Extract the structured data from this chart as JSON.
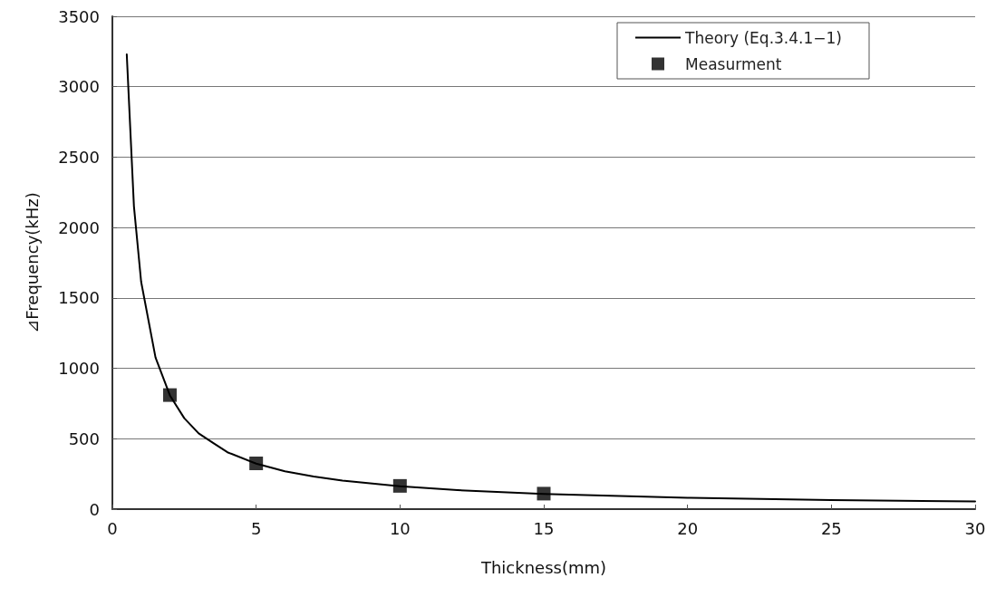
{
  "chart_data": {
    "type": "line",
    "xlabel": "Thickness(mm)",
    "ylabel": "⊿Frequency(kHz)",
    "xlim": [
      0,
      30
    ],
    "xticks": [
      0,
      5,
      10,
      15,
      20,
      25,
      30
    ],
    "ylim": [
      0,
      3500
    ],
    "yticks": [
      0,
      500,
      1000,
      1500,
      2000,
      2500,
      3000,
      3500
    ],
    "grid": "y",
    "legend": "top right",
    "series": [
      {
        "name": "Theory (Eq.3.4.1−1)",
        "type": "line",
        "marker": "none",
        "line_style": "solid",
        "color": "#000000",
        "x": [
          0.5,
          0.75,
          1,
          1.5,
          2,
          2.5,
          3,
          3.5,
          4,
          5,
          6,
          7,
          8,
          10,
          12,
          15,
          20,
          25,
          30
        ],
        "values": [
          3230,
          2150,
          1615,
          1077,
          808,
          646,
          538,
          470,
          404,
          323,
          269,
          231,
          202,
          162,
          135,
          108,
          81,
          65,
          54
        ]
      },
      {
        "name": "Measurment",
        "type": "scatter",
        "marker": "square",
        "color": "#000000",
        "x": [
          2,
          5,
          10,
          15
        ],
        "values": [
          810,
          325,
          165,
          110
        ]
      }
    ]
  }
}
